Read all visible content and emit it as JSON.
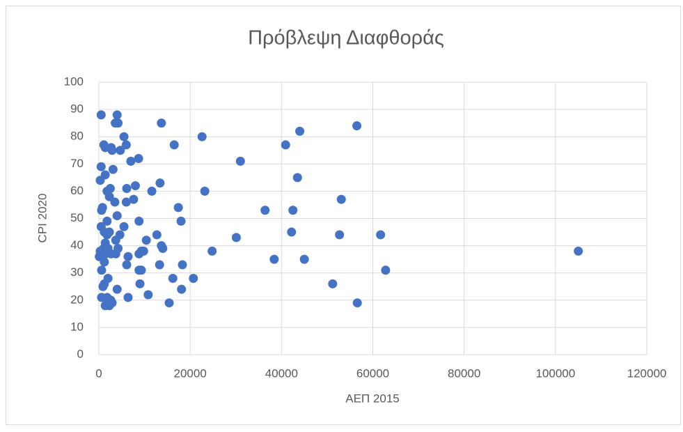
{
  "chart_data": {
    "type": "scatter",
    "title": "Πρόβλεψη Διαφθοράς",
    "x_label": "ΑΕΠ 2015",
    "y_label": "CPI 2020",
    "series": [
      {
        "color": "#4472c4",
        "x": [
          500,
          4000,
          3600,
          4200,
          13700,
          5500,
          22600,
          44000,
          56500,
          1100,
          1400,
          6000,
          16500,
          40900,
          2700,
          2900,
          4700,
          7000,
          8700,
          31000,
          500,
          3100,
          1400,
          43500,
          13400,
          300,
          8000,
          6100,
          2500,
          1800,
          11600,
          23200,
          2300,
          7600,
          6000,
          3500,
          53100,
          800,
          600,
          17400,
          36400,
          42500,
          4000,
          8800,
          18000,
          1800,
          5500,
          500,
          1200,
          2300,
          1800,
          4600,
          12700,
          42200,
          52700,
          61700,
          10400,
          3700,
          30100,
          1400,
          13700,
          14000,
          4200,
          300,
          1100,
          2000,
          9300,
          9800,
          8800,
          24800,
          105000,
          100,
          1500,
          2700,
          3700,
          6400,
          38400,
          45000,
          1200,
          6100,
          13300,
          18300,
          600,
          8800,
          9300,
          62800,
          2000,
          16200,
          20700,
          1200,
          900,
          9000,
          51200,
          4000,
          18100,
          10800,
          6400,
          600,
          1800,
          2600,
          15400,
          56600,
          1400,
          2300,
          2900
        ],
        "values": [
          88,
          88,
          85,
          85,
          85,
          80,
          80,
          82,
          84,
          77,
          76,
          77,
          77,
          77,
          76,
          75,
          75,
          71,
          72,
          71,
          69,
          68,
          66,
          65,
          63,
          64,
          62,
          61,
          61,
          60,
          60,
          60,
          58,
          57,
          56,
          56,
          57,
          54,
          53,
          54,
          53,
          53,
          51,
          49,
          49,
          49,
          47,
          47,
          45,
          45,
          44,
          44,
          44,
          45,
          44,
          44,
          42,
          42,
          43,
          41,
          40,
          39,
          39,
          38,
          39,
          39,
          38,
          38,
          37,
          38,
          38,
          36,
          37,
          37,
          37,
          36,
          35,
          35,
          34,
          33,
          33,
          33,
          31,
          31,
          31,
          31,
          28,
          28,
          28,
          26,
          25,
          26,
          26,
          24,
          24,
          22,
          21,
          21,
          21,
          20,
          19,
          19,
          18,
          18,
          19
        ]
      }
    ],
    "xlim": [
      0,
      120000
    ],
    "xticks": [
      0,
      20000,
      40000,
      60000,
      80000,
      100000,
      120000
    ],
    "ylim": [
      0,
      100
    ],
    "yticks": [
      0,
      10,
      20,
      30,
      40,
      50,
      60,
      70,
      80,
      90,
      100
    ],
    "grid": true
  }
}
